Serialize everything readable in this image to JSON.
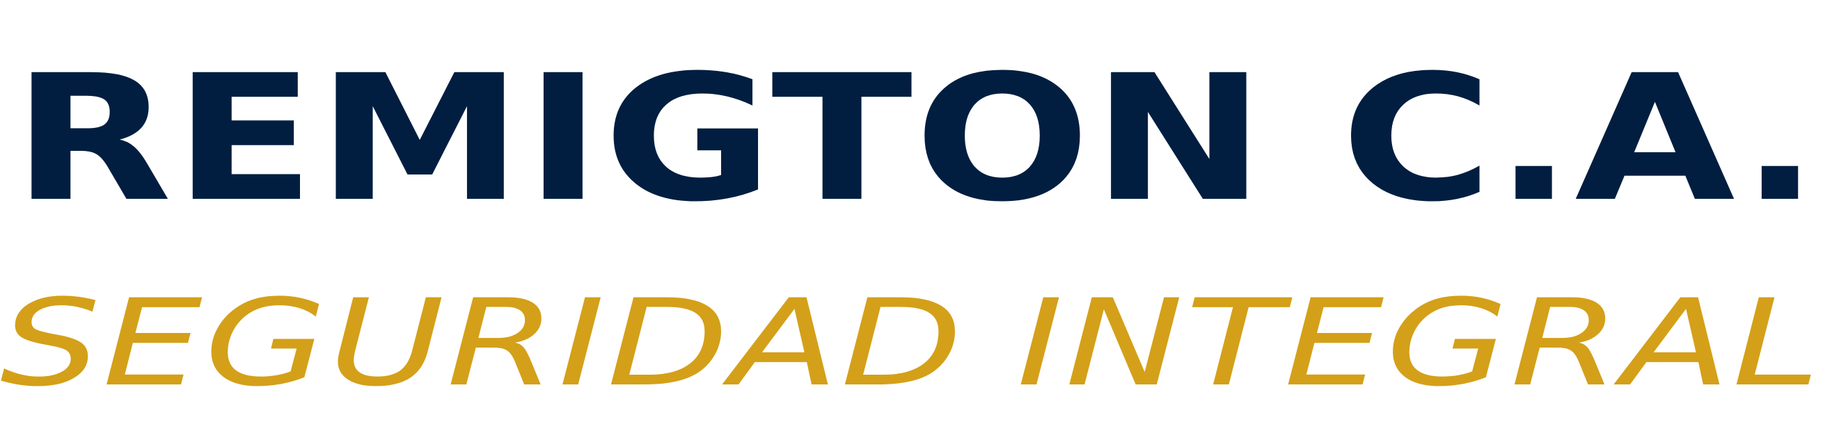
{
  "logo": {
    "brand_name": "REMIGTON C.A.",
    "tagline": "SEGURIDAD INTEGRAL"
  },
  "colors": {
    "brand_name": "#011E40",
    "tagline": "#D4A019",
    "background": "#FFFFFF"
  }
}
